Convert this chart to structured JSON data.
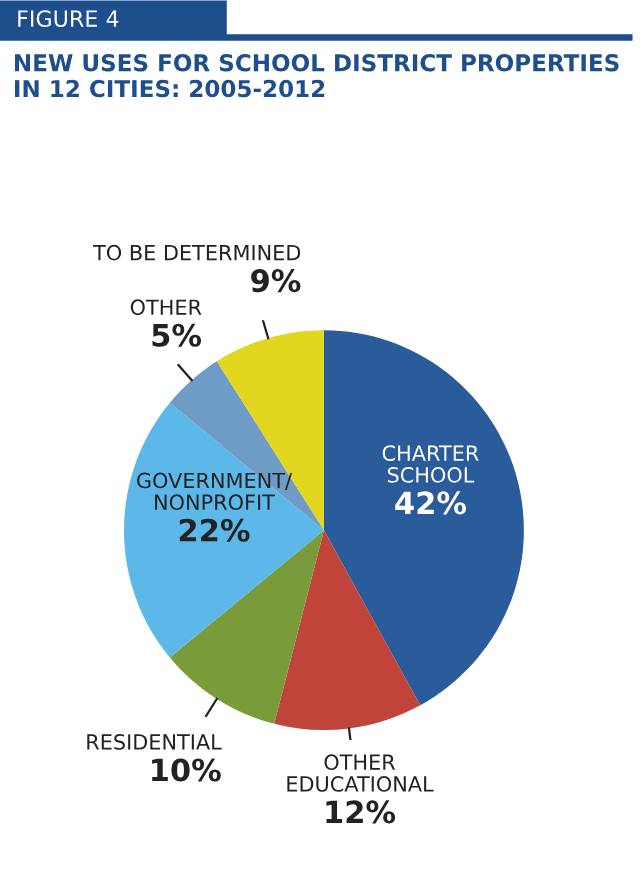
{
  "chart_data": {
    "type": "pie",
    "title": "NEW USES FOR SCHOOL DISTRICT PROPERTIES IN 12 CITIES: 2005-2012",
    "annotations": [
      "FIGURE 4"
    ],
    "categories": [
      "CHARTER SCHOOL",
      "OTHER EDUCATIONAL",
      "RESIDENTIAL",
      "GOVERNMENT/ NONPROFIT",
      "OTHER",
      "TO BE DETERMINED"
    ],
    "values": [
      42,
      12,
      10,
      22,
      5,
      9
    ],
    "value_labels": [
      "42%",
      "12%",
      "10%",
      "22%",
      "5%",
      "9%"
    ],
    "colors": [
      "#2a5c9c",
      "#c0443a",
      "#7a9b3a",
      "#5bb8e8",
      "#6e9cc6",
      "#e3d61f"
    ]
  }
}
